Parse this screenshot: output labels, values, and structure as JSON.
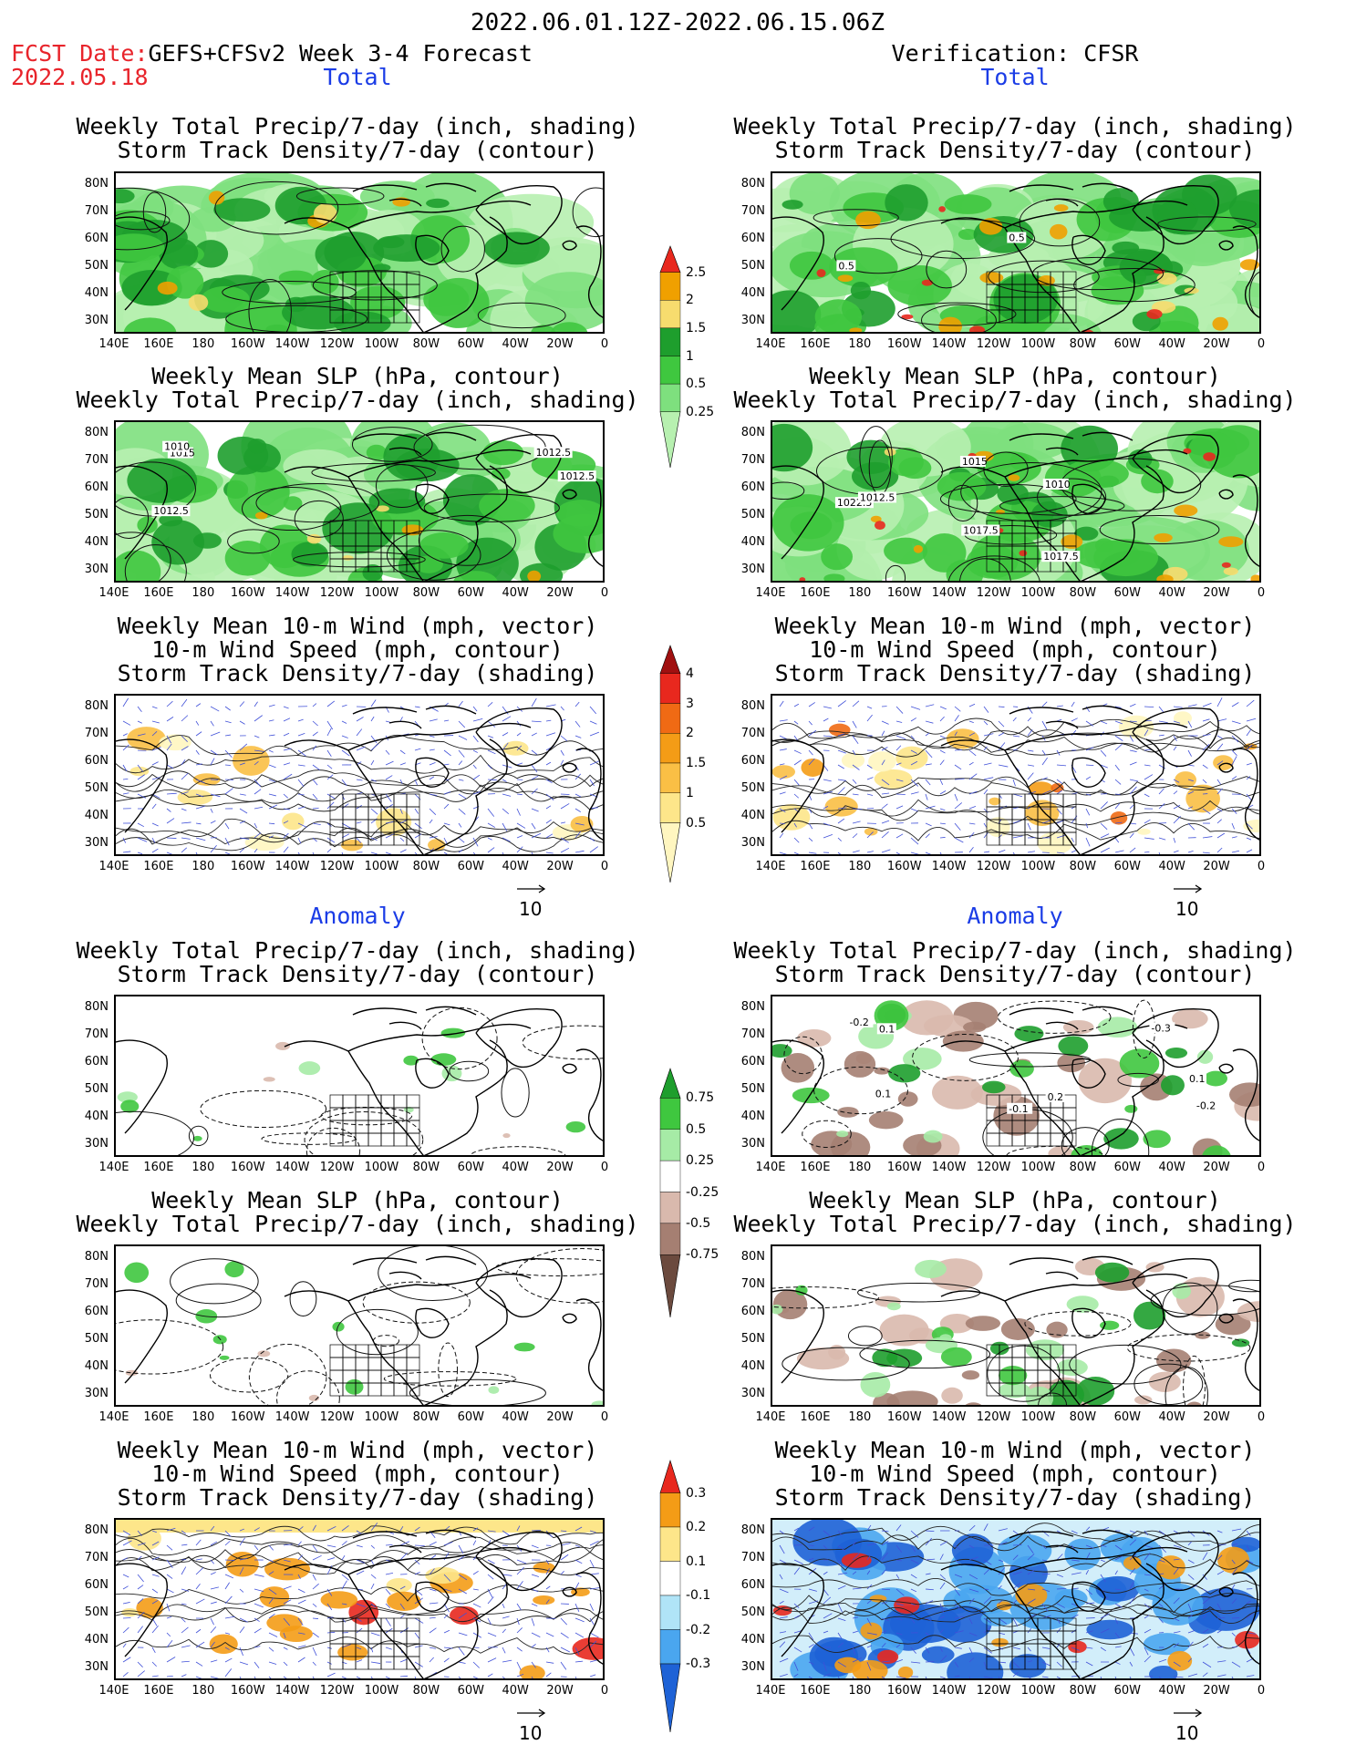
{
  "header": {
    "date_range": "2022.06.01.12Z-2022.06.15.06Z",
    "fcst_label": "FCST Date:",
    "fcst_model": "GEFS+CFSv2 Week 3-4 Forecast",
    "fcst_date": "2022.05.18",
    "verification": "Verification: CFSR"
  },
  "sections": {
    "total": "Total",
    "anomaly": "Anomaly"
  },
  "panel_titles": {
    "precip_storm": [
      "Weekly Total Precip/7-day (inch, shading)",
      "Storm Track Density/7-day (contour)"
    ],
    "slp_precip": [
      "Weekly Mean SLP (hPa, contour)",
      "Weekly Total Precip/7-day (inch, shading)"
    ],
    "wind_storm": [
      "Weekly Mean 10-m Wind (mph, vector)",
      "10-m Wind Speed (mph, contour)",
      "Storm Track Density/7-day (shading)"
    ]
  },
  "lat_ticks": [
    "80N",
    "70N",
    "60N",
    "50N",
    "40N",
    "30N"
  ],
  "lon_ticks": [
    "140E",
    "160E",
    "180",
    "160W",
    "140W",
    "120W",
    "100W",
    "80W",
    "60W",
    "40W",
    "20W",
    "0"
  ],
  "vector_ref": "10",
  "colorbars": {
    "total_precip": {
      "labels": [
        "2.5",
        "2",
        "1.5",
        "1",
        "0.5",
        "0.25"
      ],
      "colors": [
        "#e8281e",
        "#f0a000",
        "#f7dc6e",
        "#1e9e2d",
        "#3fc73f",
        "#7ee07e",
        "#b7f0b0"
      ]
    },
    "total_storm": {
      "labels": [
        "4",
        "3",
        "2",
        "1.5",
        "1",
        "0.5"
      ],
      "colors": [
        "#a01010",
        "#e8281e",
        "#f06a14",
        "#f49c16",
        "#fabf45",
        "#fde68a",
        "#fff6c0"
      ]
    },
    "anom_precip": {
      "labels": [
        "0.75",
        "0.5",
        "0.25",
        "-0.25",
        "-0.5",
        "-0.75"
      ],
      "colors": [
        "#1e9e2d",
        "#3fc73f",
        "#a6eba6",
        "#ffffff",
        "#d9b9ad",
        "#a57f72",
        "#6b4a3e"
      ]
    },
    "anom_storm": {
      "labels": [
        "0.3",
        "0.2",
        "0.1",
        "-0.1",
        "-0.2",
        "-0.3"
      ],
      "colors": [
        "#e8281e",
        "#f49c16",
        "#fde68a",
        "#ffffff",
        "#b0e4f7",
        "#4aa6ef",
        "#1e62d6"
      ]
    }
  },
  "contour_labels": {
    "slp_forecast": [
      "1015",
      "1010",
      "1012.5",
      "1012.5",
      "1012.5"
    ],
    "slp_verif": [
      "1022.5",
      "1017.5",
      "1017.5",
      "1015",
      "1012.5",
      "1010"
    ],
    "storm_verif": [
      "0.5",
      "0.5"
    ],
    "anom_storm_verif": [
      "-0.2",
      "-0.3",
      "-0.1",
      "0.2",
      "0.1",
      "0.1",
      "-0.2",
      "0.1"
    ]
  }
}
